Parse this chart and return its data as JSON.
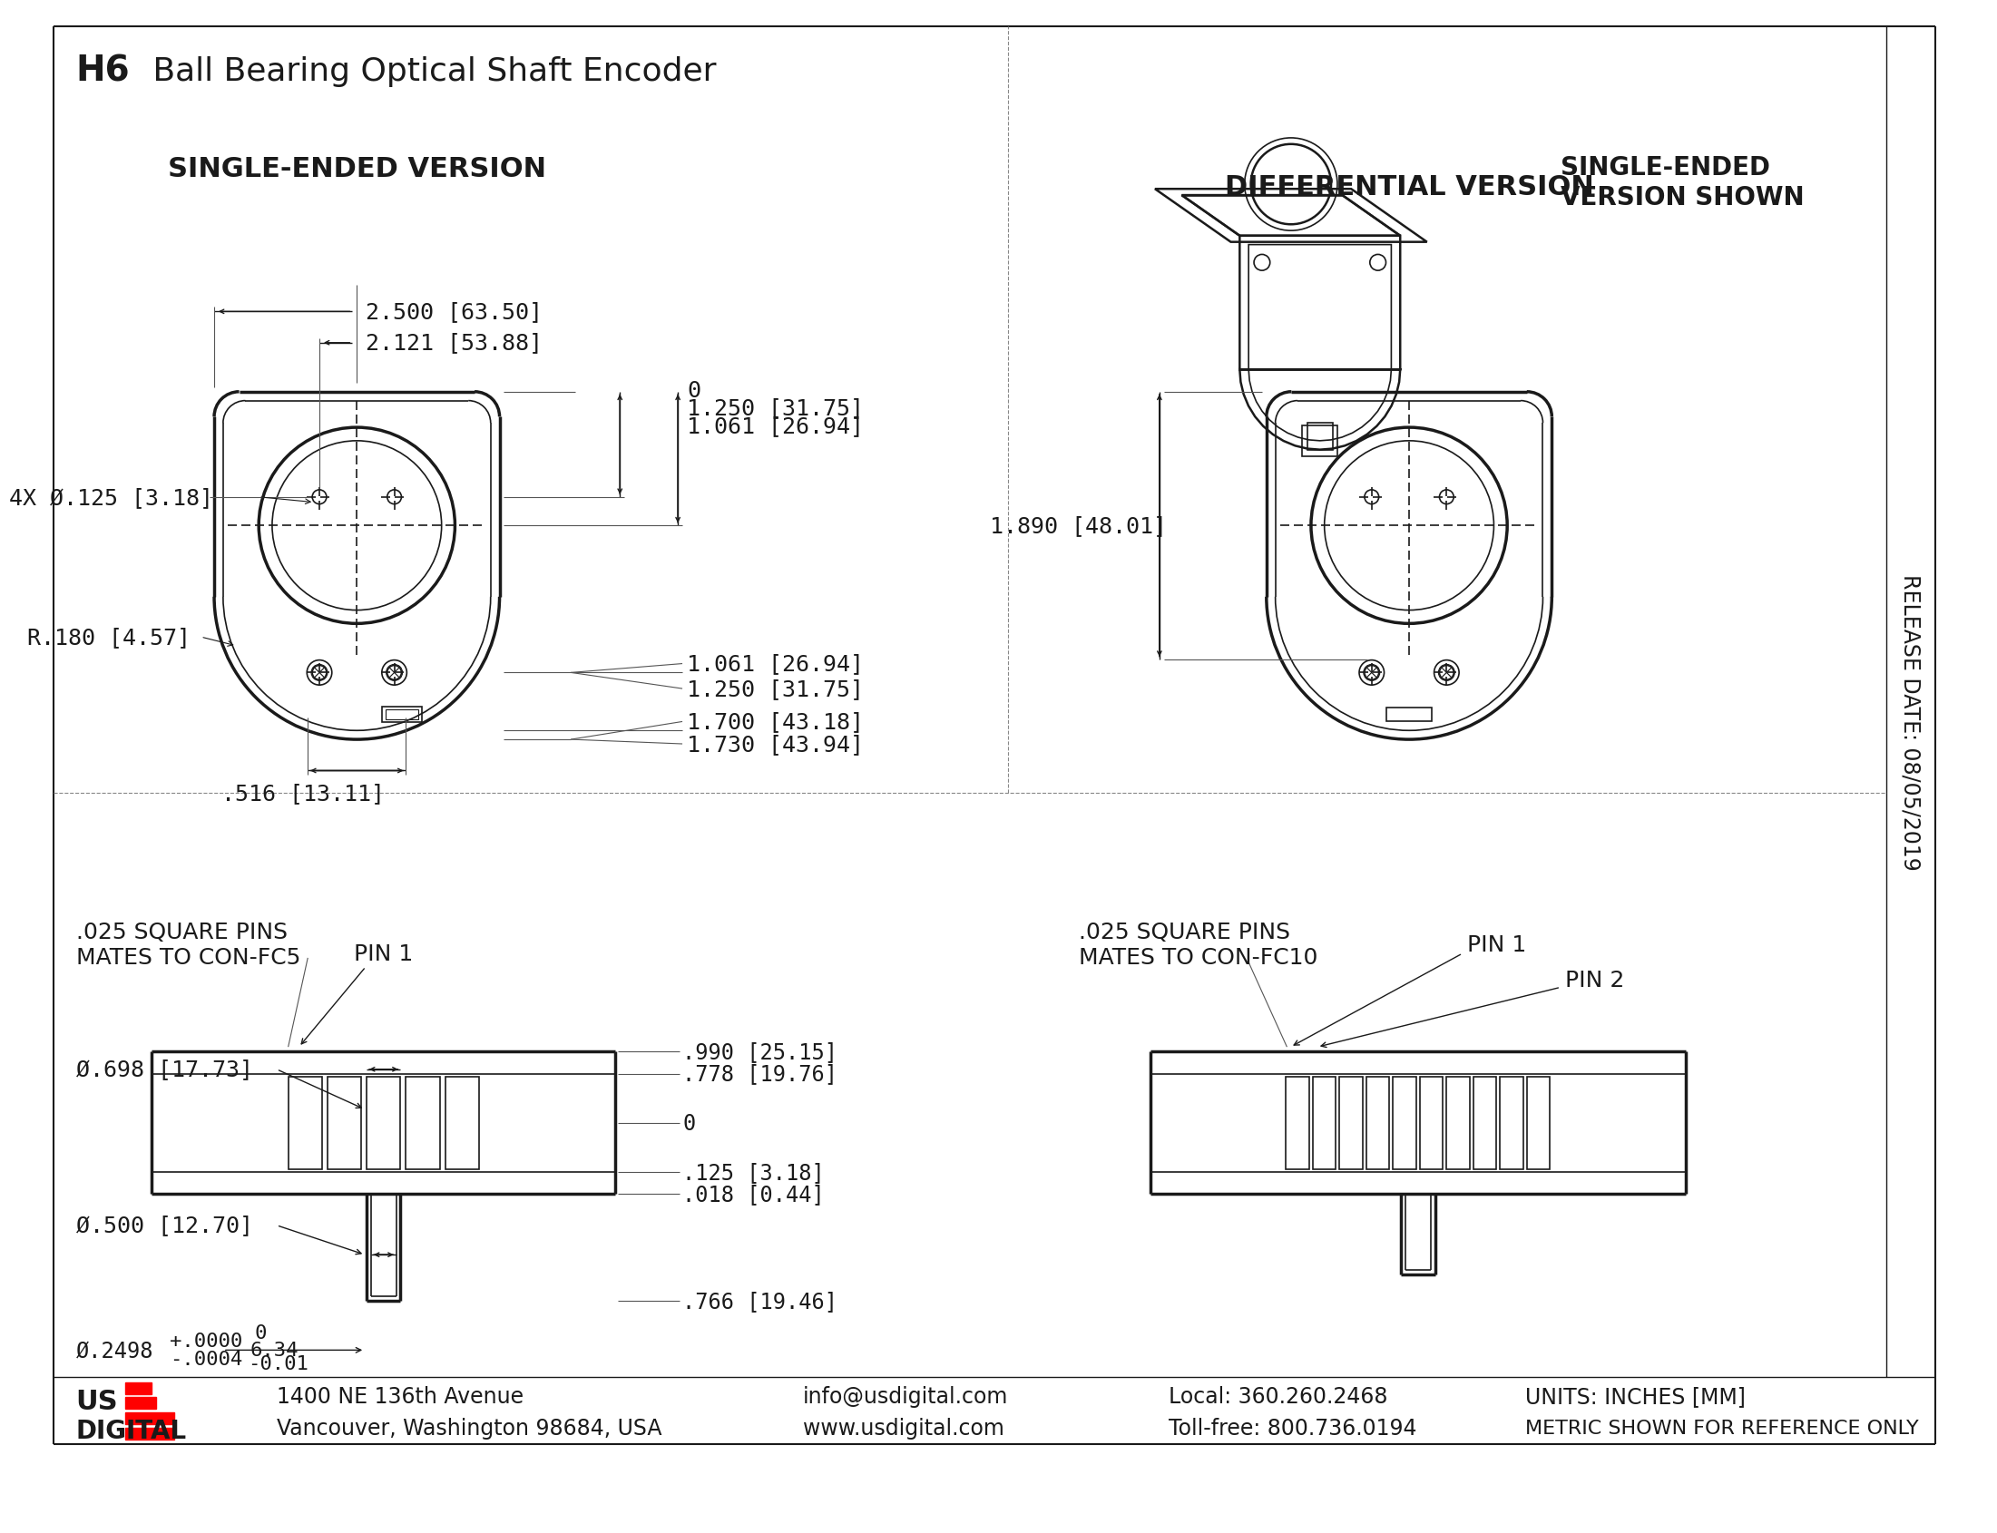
{
  "title_bold": "H6",
  "title_rest": " Ball Bearing Optical Shaft Encoder",
  "bg_color": "#ffffff",
  "line_color": "#1a1a1a",
  "section_title_single": "SINGLE-ENDED VERSION",
  "section_title_diff": "DIFFERENTIAL VERSION",
  "section_title_shown": "SINGLE-ENDED\nVERSION SHOWN",
  "footer_addr1": "1400 NE 136th Avenue",
  "footer_addr2": "Vancouver, Washington 98684, USA",
  "footer_email": "info@usdigital.com",
  "footer_web": "www.usdigital.com",
  "footer_local": "Local: 360.260.2468",
  "footer_toll": "Toll-free: 800.736.0194",
  "footer_units": "UNITS: INCHES [MM]",
  "footer_metric": "METRIC SHOWN FOR REFERENCE ONLY",
  "release_date": "RELEASE DATE: 08/05/2019",
  "dim_hole": "4X Ø.125 [3.18]",
  "dim_r180": "R.180 [4.57]",
  "dim_516": ".516 [13.11]",
  "dim_diff_w": "1.890 [48.01]",
  "dim_2500": "2.500 [63.50]",
  "dim_2121": "2.121 [53.88]",
  "dim_1250a": "1.250 [31.75]",
  "dim_1061a": "1.061 [26.94]",
  "dim_0": "0",
  "dim_1061b": "1.061 [26.94]",
  "dim_1250b": "1.250 [31.75]",
  "dim_1700": "1.700 [43.18]",
  "dim_1730": "1.730 [43.94]",
  "dim_698": "Ø.698 [17.73]",
  "dim_990": ".990 [25.15]",
  "dim_778": ".778 [19.76]",
  "dim_125": ".125 [3.18]",
  "dim_0b": "0",
  "dim_018": ".018 [0.44]",
  "dim_766": ".766 [19.46]",
  "dim_500": "Ø.500 [12.70]",
  "dim_2498a": "Ø.2498",
  "dim_2498b": "+.0000",
  "dim_2498c": "-.0004",
  "dim_634a": "0",
  "dim_634b": "6.34",
  "dim_634c": "-0.01",
  "pin1_single": "PIN 1",
  "pin_label_single": ".025 SQUARE PINS\nMATES TO CON-FC5",
  "pin1_diff": "PIN 1",
  "pin2_diff": "PIN 2",
  "pin_label_diff": ".025 SQUARE PINS\nMATES TO CON-FC10"
}
